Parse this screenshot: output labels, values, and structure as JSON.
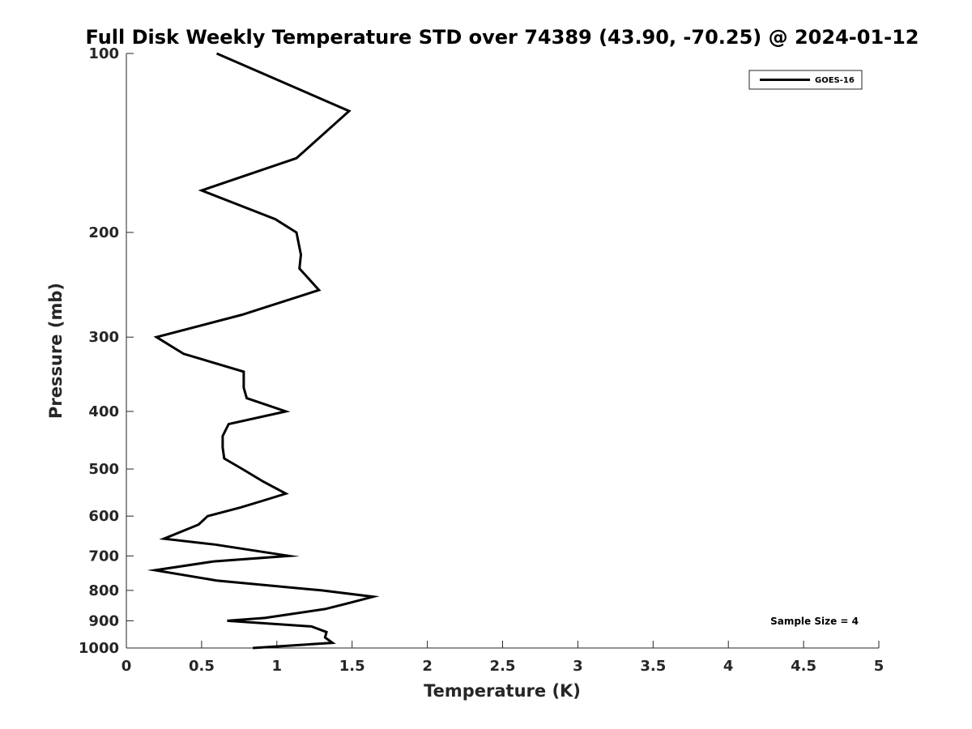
{
  "chart_data": {
    "type": "line",
    "title": "Full Disk Weekly Temperature STD over 74389 (43.90, -70.25) @ 2024-01-12",
    "xlabel": "Temperature (K)",
    "ylabel": "Pressure (mb)",
    "xlim": [
      0,
      5
    ],
    "ylim": [
      1000,
      100
    ],
    "yscale": "log",
    "y_reversed": true,
    "grid": false,
    "legend_position": "top-right",
    "x_ticks": [
      "0",
      "0.5",
      "1",
      "1.5",
      "2",
      "2.5",
      "3",
      "3.5",
      "4",
      "4.5",
      "5"
    ],
    "y_ticks": [
      "100",
      "200",
      "300",
      "400",
      "500",
      "600",
      "700",
      "800",
      "900",
      "1000"
    ],
    "series": [
      {
        "name": "GOES-16",
        "color": "#000000",
        "points": [
          [
            0.6,
            100
          ],
          [
            1.48,
            125
          ],
          [
            1.13,
            150
          ],
          [
            0.5,
            170
          ],
          [
            0.99,
            190
          ],
          [
            1.13,
            200
          ],
          [
            1.16,
            218
          ],
          [
            1.15,
            230
          ],
          [
            1.28,
            250
          ],
          [
            0.77,
            275
          ],
          [
            0.2,
            300
          ],
          [
            0.38,
            320
          ],
          [
            0.78,
            343
          ],
          [
            0.78,
            365
          ],
          [
            0.8,
            380
          ],
          [
            1.06,
            400
          ],
          [
            0.68,
            420
          ],
          [
            0.64,
            440
          ],
          [
            0.64,
            460
          ],
          [
            0.65,
            480
          ],
          [
            0.77,
            500
          ],
          [
            0.91,
            525
          ],
          [
            1.06,
            550
          ],
          [
            0.91,
            565
          ],
          [
            0.76,
            580
          ],
          [
            0.54,
            600
          ],
          [
            0.48,
            620
          ],
          [
            0.25,
            655
          ],
          [
            0.59,
            670
          ],
          [
            1.08,
            700
          ],
          [
            0.58,
            715
          ],
          [
            0.19,
            740
          ],
          [
            0.6,
            770
          ],
          [
            1.3,
            800
          ],
          [
            1.64,
            820
          ],
          [
            1.48,
            840
          ],
          [
            1.32,
            860
          ],
          [
            0.92,
            890
          ],
          [
            0.67,
            900
          ],
          [
            1.23,
            920
          ],
          [
            1.33,
            940
          ],
          [
            1.32,
            960
          ],
          [
            1.37,
            980
          ],
          [
            0.84,
            1000
          ]
        ]
      }
    ],
    "annotations": [
      "Sample Size = 4"
    ]
  }
}
